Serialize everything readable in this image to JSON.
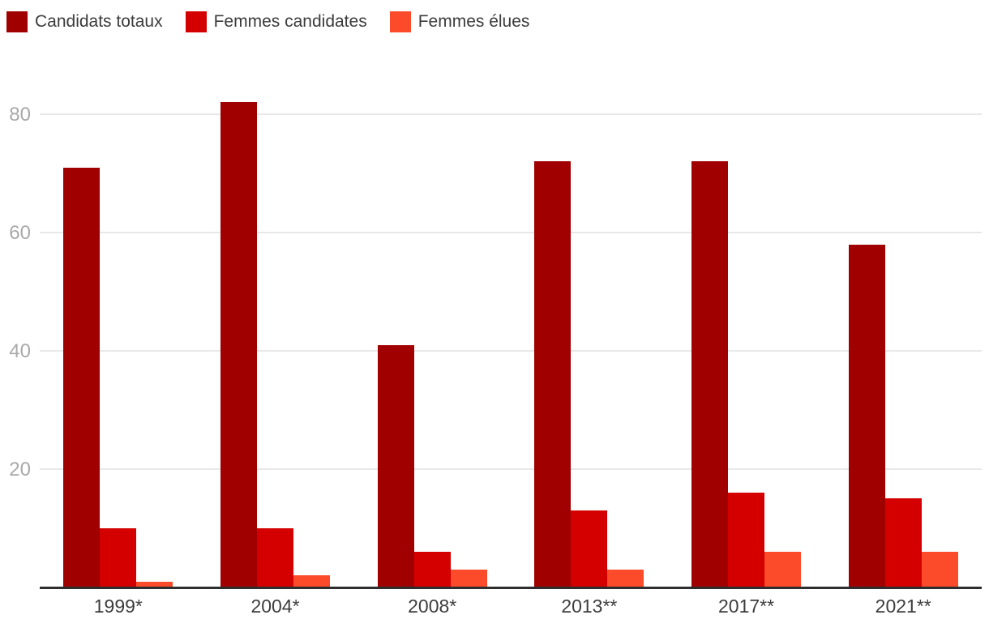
{
  "colors": {
    "background": "#ffffff",
    "series_dark_red": "#a00000",
    "series_red": "#d40000",
    "series_orange": "#fb4b2a",
    "axis_line": "#2e2e2e",
    "gridline": "#e8e8e8",
    "y_tick_label": "#a9a9a9",
    "x_tick_label": "#3d3d3d",
    "legend_text": "#3c3c3c"
  },
  "chart_data": {
    "type": "bar",
    "title": "",
    "xlabel": "",
    "ylabel": "",
    "categories": [
      "1999*",
      "2004*",
      "2008*",
      "2013**",
      "2017**",
      "2021**"
    ],
    "series": [
      {
        "name": "Candidats totaux",
        "color": "#a00000",
        "values": [
          71,
          82,
          41,
          72,
          72,
          58
        ]
      },
      {
        "name": "Femmes candidates",
        "color": "#d40000",
        "values": [
          10,
          10,
          6,
          13,
          16,
          15
        ]
      },
      {
        "name": "Femmes élues",
        "color": "#fb4b2a",
        "values": [
          1,
          2,
          3,
          3,
          6,
          6
        ]
      }
    ],
    "yticks": [
      20,
      40,
      60,
      80
    ],
    "ylim": [
      0,
      85
    ],
    "grid": true,
    "legend_position": "top-left"
  }
}
